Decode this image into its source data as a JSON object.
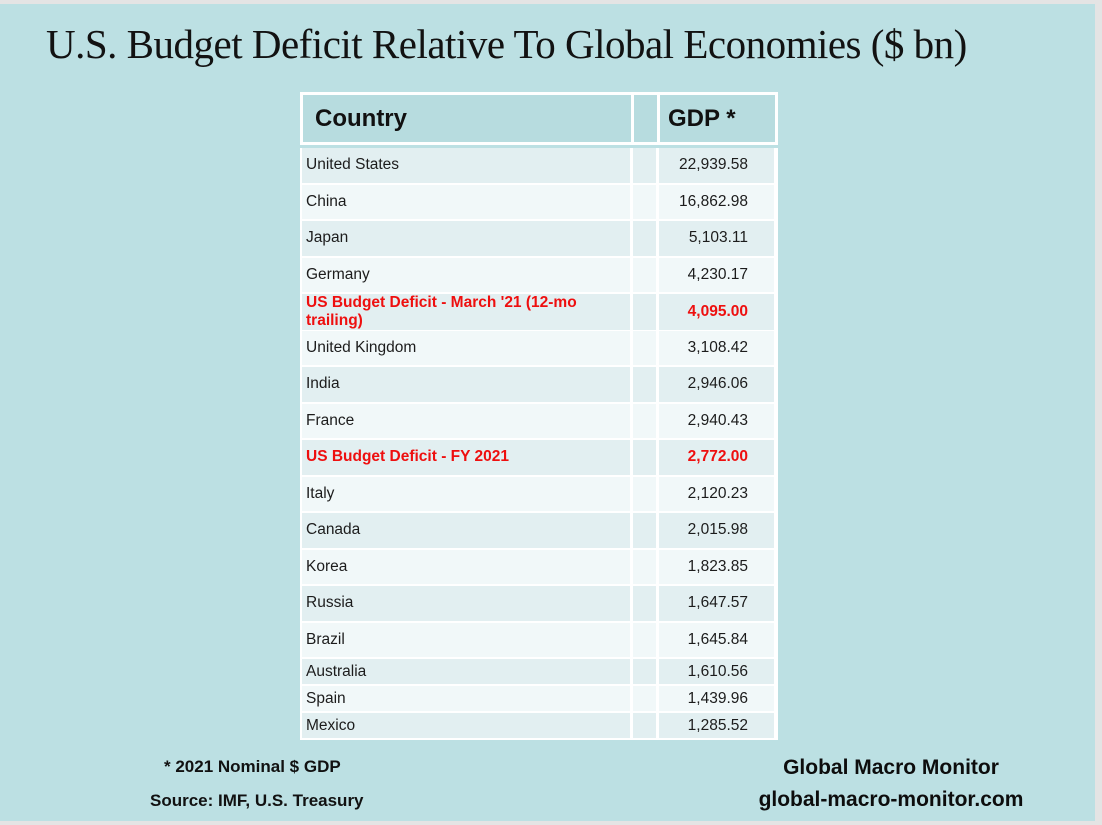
{
  "title": "U.S. Budget Deficit Relative To Global Economies ($ bn)",
  "chart_data": {
    "type": "table",
    "columns": [
      "Country",
      "GDP *"
    ],
    "rows": [
      {
        "label": "United States",
        "gdp": 22939.58,
        "display": "22,939.58",
        "highlight": false
      },
      {
        "label": "China",
        "gdp": 16862.98,
        "display": "16,862.98",
        "highlight": false
      },
      {
        "label": "Japan",
        "gdp": 5103.11,
        "display": "5,103.11",
        "highlight": false
      },
      {
        "label": "Germany",
        "gdp": 4230.17,
        "display": "4,230.17",
        "highlight": false
      },
      {
        "label": "US Budget Deficit - March '21 (12-mo trailing)",
        "gdp": 4095.0,
        "display": "4,095.00",
        "highlight": true
      },
      {
        "label": "United Kingdom",
        "gdp": 3108.42,
        "display": "3,108.42",
        "highlight": false
      },
      {
        "label": "India",
        "gdp": 2946.06,
        "display": "2,946.06",
        "highlight": false
      },
      {
        "label": "France",
        "gdp": 2940.43,
        "display": "2,940.43",
        "highlight": false
      },
      {
        "label": "US Budget Deficit - FY 2021",
        "gdp": 2772.0,
        "display": "2,772.00",
        "highlight": true
      },
      {
        "label": "Italy",
        "gdp": 2120.23,
        "display": "2,120.23",
        "highlight": false
      },
      {
        "label": "Canada",
        "gdp": 2015.98,
        "display": "2,015.98",
        "highlight": false
      },
      {
        "label": "Korea",
        "gdp": 1823.85,
        "display": "1,823.85",
        "highlight": false
      },
      {
        "label": "Russia",
        "gdp": 1647.57,
        "display": "1,647.57",
        "highlight": false
      },
      {
        "label": "Brazil",
        "gdp": 1645.84,
        "display": "1,645.84",
        "highlight": false
      },
      {
        "label": "Australia",
        "gdp": 1610.56,
        "display": "1,610.56",
        "highlight": false
      },
      {
        "label": "Spain",
        "gdp": 1439.96,
        "display": "1,439.96",
        "highlight": false
      },
      {
        "label": "Mexico",
        "gdp": 1285.52,
        "display": "1,285.52",
        "highlight": false
      }
    ],
    "title": "U.S. Budget Deficit Relative To Global Economies ($ bn)",
    "legend": "none",
    "grid": "off",
    "highlight_color": "#ee0f0f"
  },
  "table_header": {
    "country": "Country",
    "gdp": "GDP *"
  },
  "footnotes": {
    "gdp_note": "* 2021 Nominal $ GDP",
    "source": "Source: IMF, U.S. Treasury"
  },
  "branding": {
    "name": "Global Macro Monitor",
    "site": "global-macro-monitor.com"
  },
  "colors": {
    "slide_background": "#bce0e3",
    "header_cell": "#b7dcdf",
    "row_dark": "#e2eff1",
    "row_light": "#f1f8f9",
    "highlight_red": "#ee0f0f",
    "text": "#1c1c1c"
  }
}
